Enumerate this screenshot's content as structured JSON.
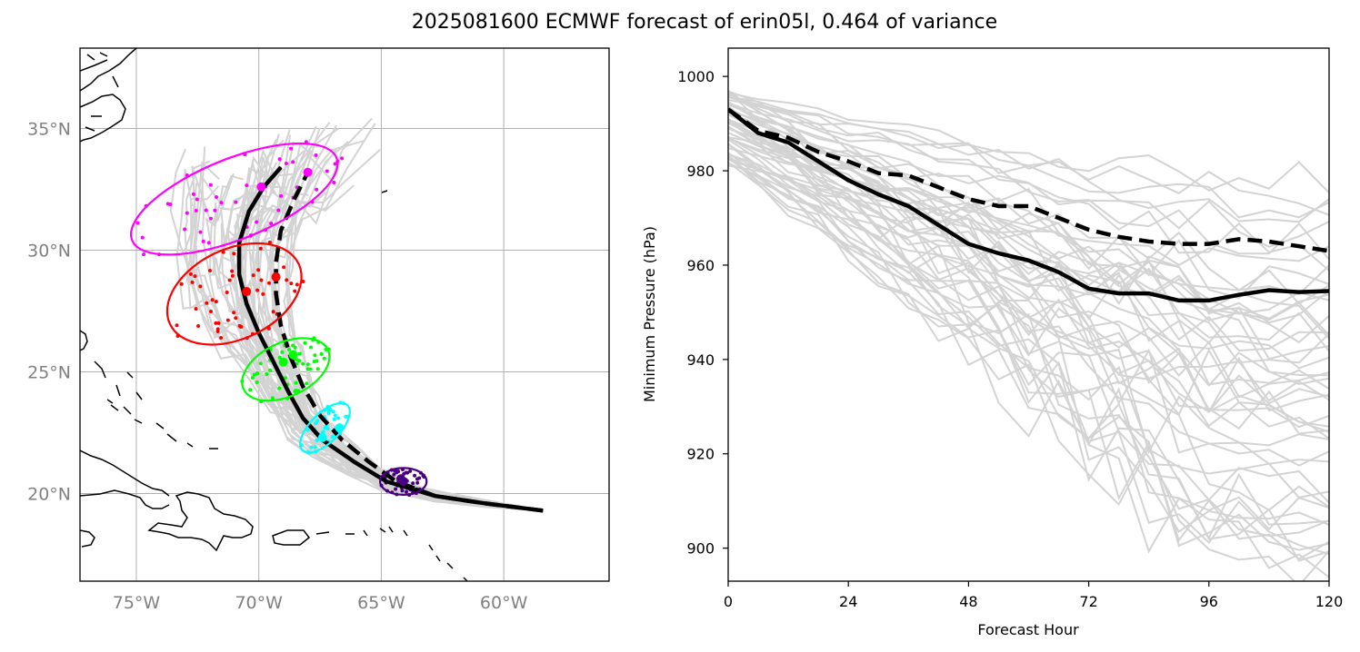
{
  "title": "2025081600 ECMWF forecast of erin05l, 0.464 of variance",
  "chart_data": [
    {
      "type": "scatter",
      "panel": "track map",
      "xlim": [
        -77.3,
        -55.7
      ],
      "ylim": [
        16.4,
        38.3
      ],
      "x_ticks": [
        {
          "value": -75,
          "label": "75°W"
        },
        {
          "value": -70,
          "label": "70°W"
        },
        {
          "value": -65,
          "label": "65°W"
        },
        {
          "value": -60,
          "label": "60°W"
        }
      ],
      "y_ticks": [
        {
          "value": 20,
          "label": "20°N"
        },
        {
          "value": 25,
          "label": "25°N"
        },
        {
          "value": 30,
          "label": "30°N"
        },
        {
          "value": 35,
          "label": "35°N"
        }
      ],
      "grid": true,
      "colors": {
        "ensemble": "#d3d3d3",
        "mean": "#000000",
        "day1": "#4b0082",
        "day2": "#00ffff",
        "day3": "#00ff00",
        "day4": "#ff0000",
        "day5": "#ff00ff"
      },
      "series": [
        {
          "style": "solid",
          "lon": [
            -58.4,
            -60.8,
            -62.8,
            -64.8,
            -66.1,
            -67.4,
            -68.2,
            -68.8,
            -69.4,
            -70.0,
            -70.5,
            -70.8,
            -70.8,
            -70.4,
            -69.8,
            -69.1
          ],
          "lat": [
            19.3,
            19.6,
            19.9,
            20.5,
            21.3,
            22.2,
            23.1,
            24.2,
            25.4,
            26.6,
            27.8,
            29.0,
            30.3,
            31.6,
            32.6,
            33.4
          ]
        },
        {
          "style": "dashed",
          "lon": [
            -58.4,
            -60.8,
            -62.8,
            -64.4,
            -65.5,
            -66.6,
            -67.5,
            -68.2,
            -68.7,
            -69.1,
            -69.3,
            -69.3,
            -69.1,
            -68.6,
            -68.0
          ],
          "lat": [
            19.3,
            19.6,
            19.9,
            20.5,
            21.3,
            22.2,
            23.2,
            24.4,
            25.6,
            26.9,
            28.2,
            29.5,
            30.8,
            32.0,
            33.2
          ]
        }
      ],
      "ellipses": [
        {
          "color": "day1",
          "center": [
            -64.1,
            20.5
          ],
          "width_deg": 1.9,
          "height_deg": 1.1,
          "angle": 0
        },
        {
          "color": "day2",
          "center": [
            -67.3,
            22.7
          ],
          "width_deg": 2.6,
          "height_deg": 1.2,
          "angle": 45
        },
        {
          "color": "day3",
          "center": [
            -68.9,
            25.1
          ],
          "width_deg": 3.8,
          "height_deg": 2.2,
          "angle": 25
        },
        {
          "color": "day4",
          "center": [
            -71.0,
            28.2
          ],
          "width_deg": 5.8,
          "height_deg": 3.7,
          "angle": 25
        },
        {
          "color": "day5",
          "center": [
            -71.0,
            32.1
          ],
          "width_deg": 9.0,
          "height_deg": 3.3,
          "angle": 22
        }
      ],
      "mean_markers": [
        {
          "color": "day1",
          "lon": -64.1,
          "lat": 20.5
        },
        {
          "color": "day2",
          "lon": -67.4,
          "lat": 22.3
        },
        {
          "color": "day3",
          "lon": -69.0,
          "lat": 25.4
        },
        {
          "color": "day4",
          "lon": -70.5,
          "lat": 28.3
        },
        {
          "color": "day5",
          "lon": -69.9,
          "lat": 32.6
        },
        {
          "color": "day4",
          "lon": -69.3,
          "lat": 28.9
        },
        {
          "color": "day5",
          "lon": -68.0,
          "lat": 33.2
        },
        {
          "color": "day3",
          "lon": -68.6,
          "lat": 25.7
        },
        {
          "color": "day2",
          "lon": -66.7,
          "lat": 22.7
        },
        {
          "color": "day1",
          "lon": -64.2,
          "lat": 20.6
        }
      ]
    },
    {
      "type": "line",
      "panel": "minimum pressure",
      "xlabel": "Forecast Hour",
      "ylabel": "Minimum Pressure (hPa)",
      "xlim": [
        0,
        120
      ],
      "ylim": [
        893,
        1006
      ],
      "x_ticks": [
        0,
        24,
        48,
        72,
        96,
        120
      ],
      "y_ticks": [
        900,
        920,
        940,
        960,
        980,
        1000
      ],
      "x": [
        0,
        6,
        12,
        18,
        24,
        30,
        36,
        42,
        48,
        54,
        60,
        66,
        72,
        78,
        84,
        90,
        96,
        102,
        108,
        114,
        120
      ],
      "colors": {
        "ensemble": "#d3d3d3",
        "mean": "#000000"
      },
      "series": [
        {
          "style": "solid",
          "values": [
            993,
            988,
            986,
            982,
            978,
            975,
            972.5,
            968.5,
            964.5,
            962.5,
            961,
            958.5,
            955,
            954,
            954,
            952.5,
            952.5,
            953.7,
            954.7,
            954.3,
            954.5
          ]
        },
        {
          "style": "dashed",
          "values": [
            993,
            988.5,
            987,
            984,
            982,
            979.5,
            979,
            976.5,
            974,
            972.5,
            972.5,
            970,
            967.5,
            966,
            965,
            964.5,
            964.5,
            965.5,
            965,
            964,
            963
          ]
        }
      ]
    }
  ]
}
